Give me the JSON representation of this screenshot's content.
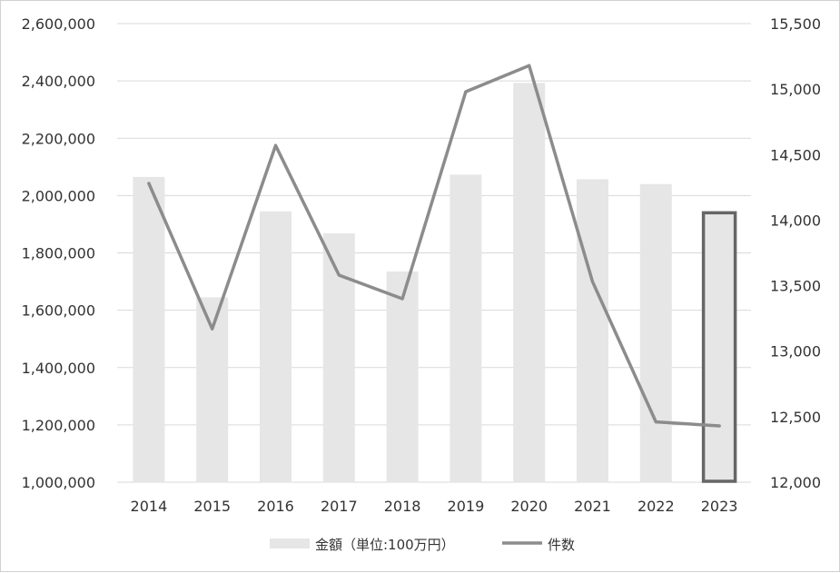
{
  "chart_data": {
    "type": "bar",
    "categories": [
      "2014",
      "2015",
      "2016",
      "2017",
      "2018",
      "2019",
      "2020",
      "2021",
      "2022",
      "2023"
    ],
    "series": [
      {
        "name": "金額（単位:100万円）",
        "type": "bar",
        "axis": "left",
        "color": "#e6e6e6",
        "values": [
          2065000,
          1645000,
          1945000,
          1868000,
          1735000,
          2073000,
          2393000,
          2057000,
          2040000,
          1940000
        ]
      },
      {
        "name": "件数",
        "type": "line",
        "axis": "right",
        "color": "#8c8c8c",
        "values": [
          14280,
          13170,
          14570,
          13580,
          13400,
          14980,
          15180,
          13530,
          12460,
          12430
        ]
      }
    ],
    "y_left": {
      "ylim": [
        1000000,
        2600000
      ],
      "ticks": [
        1000000,
        1200000,
        1400000,
        1600000,
        1800000,
        2000000,
        2200000,
        2400000,
        2600000
      ],
      "tick_labels": [
        "1,000,000",
        "1,200,000",
        "1,400,000",
        "1,600,000",
        "1,800,000",
        "2,000,000",
        "2,200,000",
        "2,400,000",
        "2,600,000"
      ]
    },
    "y_right": {
      "ylim": [
        12000,
        15500
      ],
      "ticks": [
        12000,
        12500,
        13000,
        13500,
        14000,
        14500,
        15000,
        15500
      ],
      "tick_labels": [
        "12,000",
        "12,500",
        "13,000",
        "13,500",
        "14,000",
        "14,500",
        "15,000",
        "15,500"
      ]
    },
    "highlight_category": "2023",
    "highlight_color": "#666666",
    "grid": true,
    "gridline_color": "#d9d9d9",
    "legend_position": "bottom"
  }
}
